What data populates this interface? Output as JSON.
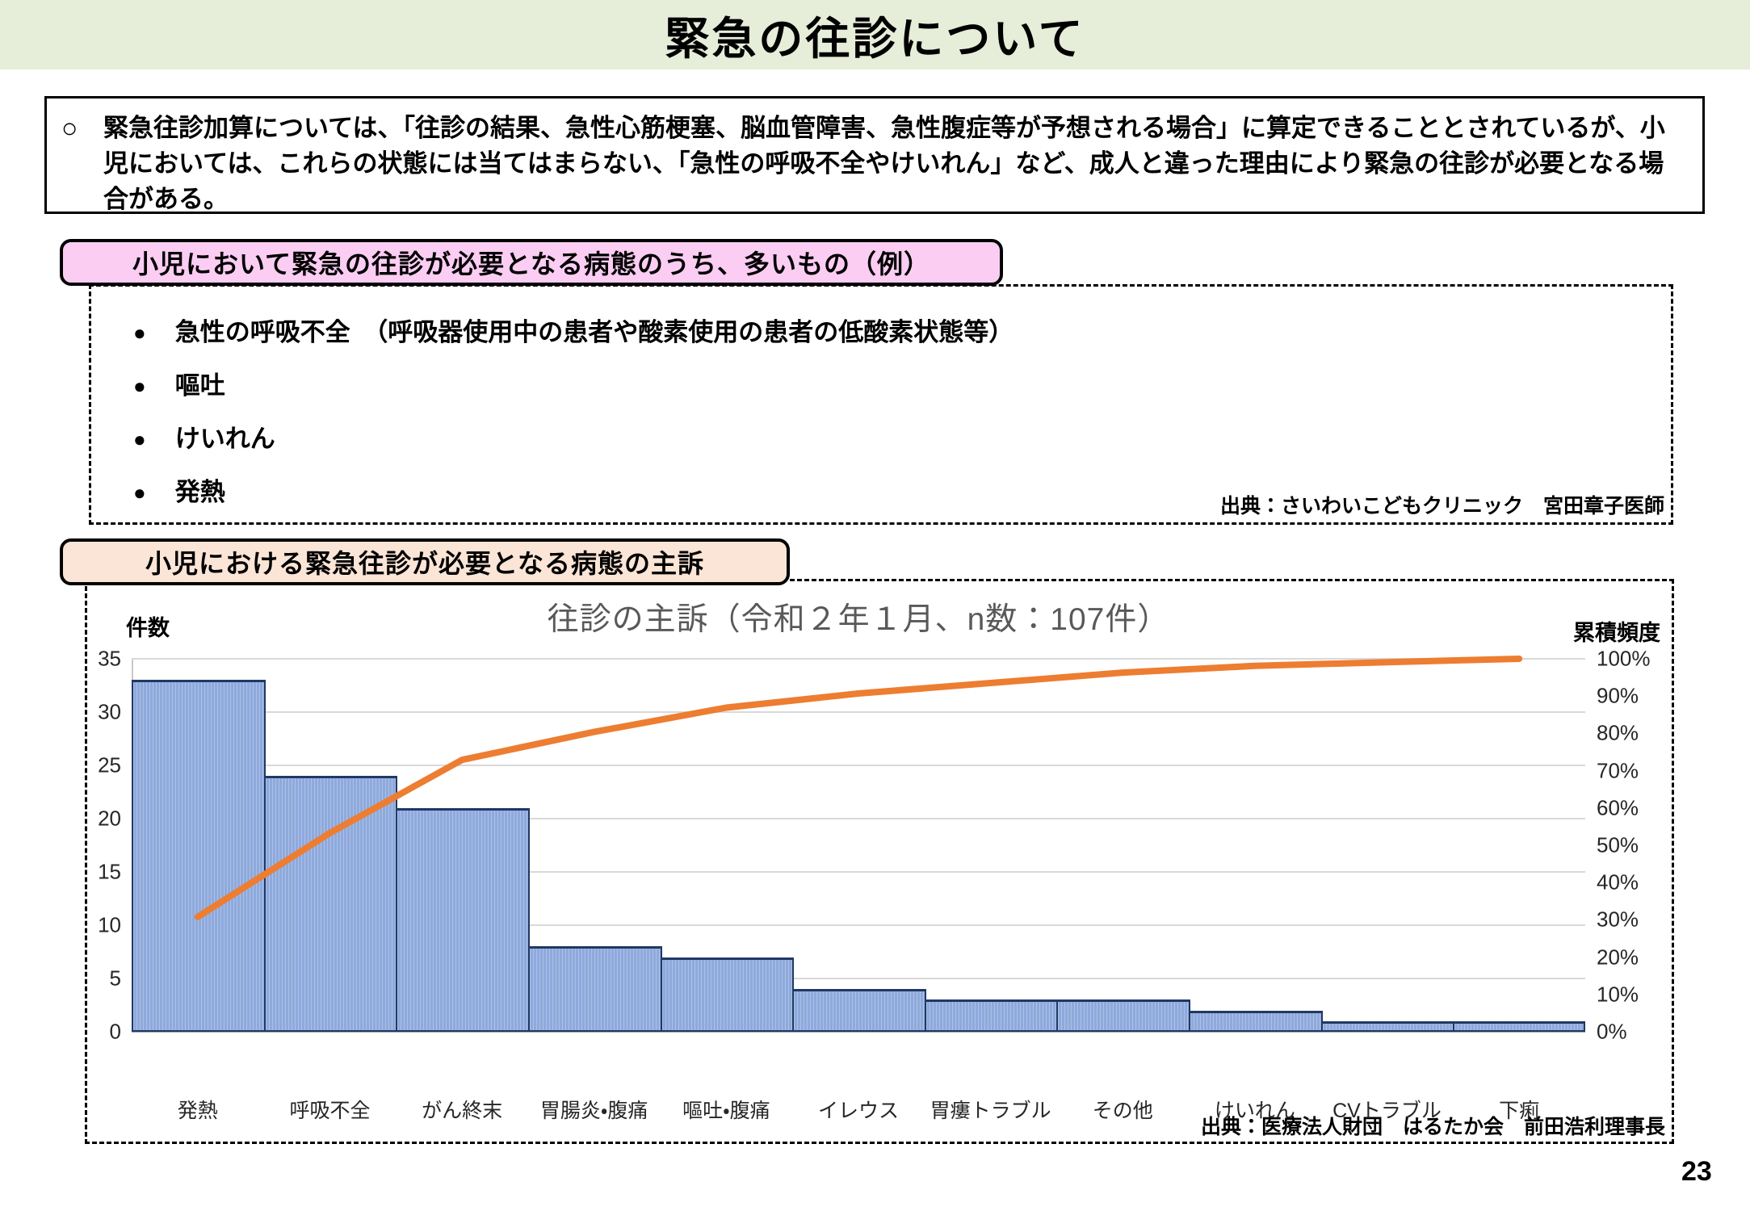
{
  "header": {
    "title": "緊急の往診について"
  },
  "summary_box": {
    "marker": "○",
    "text": "緊急往診加算については、「往診の結果、急性心筋梗塞、脳血管障害、急性腹症等が予想される場合」に算定できることとされているが、小児においては、これらの状態には当てはまらない、「急性の呼吸不全やけいれん」など、成人と違った理由により緊急の往診が必要となる場合がある。"
  },
  "conditions_section": {
    "label": "小児において緊急の往診が必要となる病態のうち、多いもの（例）",
    "bullets": [
      "急性の呼吸不全　（呼吸器使用中の患者や酸素使用の患者の低酸素状態等）",
      "嘔吐",
      "けいれん",
      "発熱"
    ],
    "source": "出典：さいわいこどもクリニック　宮田章子医師"
  },
  "chart_section": {
    "label": "小児における緊急往診が必要となる病態の主訴",
    "source": "出典：医療法人財団　はるたか会　前田浩利理事長"
  },
  "chart_data": {
    "type": "bar",
    "subtype": "pareto",
    "title": "往診の主訴（令和２年１月、n数：107件）",
    "n_total": 107,
    "left_axis_label": "件数",
    "right_axis_label": "累積頻度",
    "categories": [
      "発熱",
      "呼吸不全",
      "がん終末",
      "胃腸炎・腹痛",
      "嘔吐・腹痛",
      "イレウス",
      "胃瘻トラブル",
      "その他",
      "けいれん",
      "CVトラブル",
      "下痢"
    ],
    "series": [
      {
        "name": "件数",
        "type": "bar",
        "axis": "left",
        "values": [
          33,
          24,
          21,
          8,
          7,
          4,
          3,
          3,
          2,
          1,
          1
        ]
      },
      {
        "name": "累積頻度",
        "type": "line",
        "axis": "right",
        "values_pct": [
          30.8,
          53.3,
          72.9,
          80.4,
          86.9,
          90.7,
          93.5,
          96.3,
          98.1,
          99.1,
          100.0
        ]
      }
    ],
    "left_axis": {
      "min": 0,
      "max": 35,
      "ticks": [
        0,
        5,
        10,
        15,
        20,
        25,
        30,
        35
      ]
    },
    "right_axis": {
      "min": "0%",
      "max": "100%",
      "ticks": [
        "0%",
        "10%",
        "20%",
        "30%",
        "40%",
        "50%",
        "60%",
        "70%",
        "80%",
        "90%",
        "100%"
      ]
    },
    "grid": "horizontal gridlines at left-axis ticks",
    "legend": "none",
    "colors": {
      "bar_fill": "#8ea9dc",
      "bar_border": "#203864",
      "line": "#ed7d31",
      "grid": "#d9d9d9",
      "title_text": "#595959"
    }
  },
  "colors": {
    "header_bg": "#e6edd8",
    "pink_label_bg": "#fbcdf3",
    "peach_label_bg": "#fbe5d6"
  },
  "footer": {
    "page_number": "23"
  }
}
